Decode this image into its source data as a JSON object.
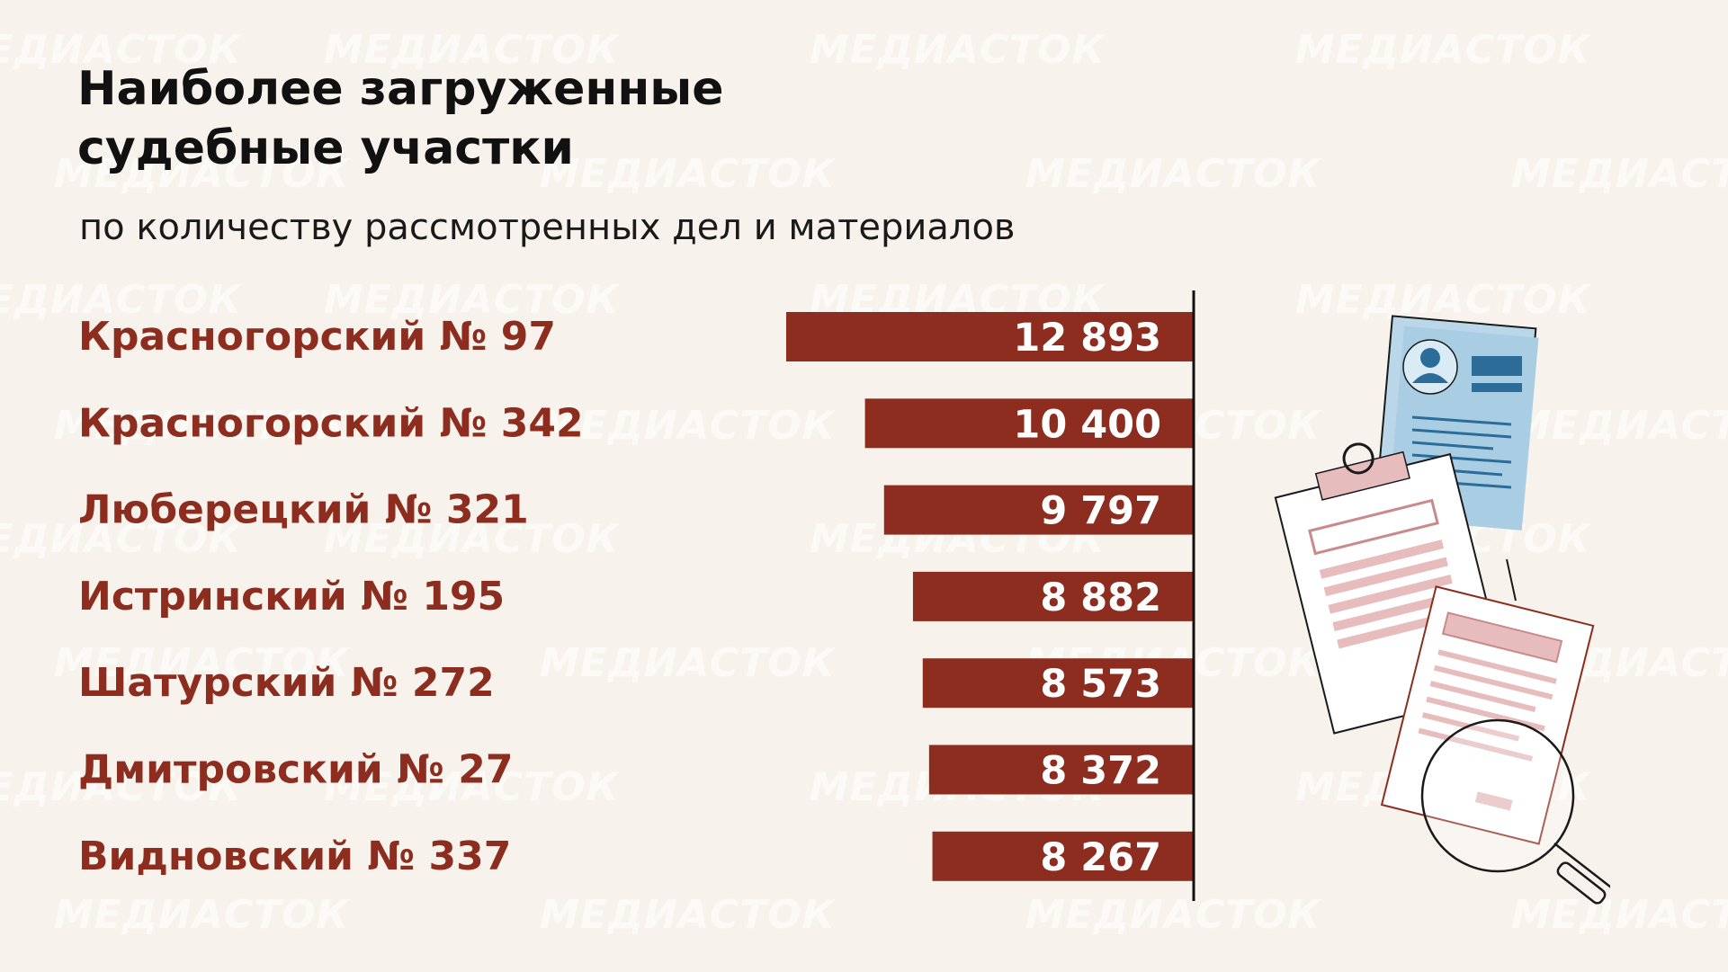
{
  "title_line1": "Наиболее загруженные",
  "title_line2": "судебные участки",
  "subtitle": "по количеству рассмотренных дел и материалов",
  "watermark": "МЕДИАСТОК",
  "colors": {
    "bar": "#8c2d1f",
    "background": "#f7f3ec",
    "label": "#8c2d1f"
  },
  "chart_data": {
    "type": "bar",
    "orientation": "horizontal",
    "categories": [
      "Красногорский № 97",
      "Красногорский № 342",
      "Люберецкий № 321",
      "Истринский № 195",
      "Шатурский № 272",
      "Дмитровский № 27",
      "Видновский № 337"
    ],
    "values": [
      12893,
      10400,
      9797,
      8882,
      8573,
      8372,
      8267
    ],
    "value_labels": [
      "12 893",
      "10 400",
      "9 797",
      "8 882",
      "8 573",
      "8 372",
      "8 267"
    ],
    "xlim": [
      0,
      13000
    ]
  }
}
